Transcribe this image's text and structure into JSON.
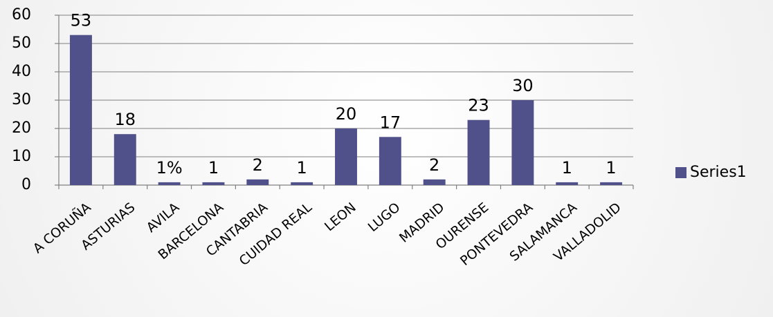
{
  "chart_data": {
    "type": "bar",
    "categories": [
      "A CORUÑA",
      "ASTURIAS",
      "AVILA",
      "BARCELONA",
      "CANTABRIA",
      "CUIDAD REAL",
      "LEON",
      "LUGO",
      "MADRID",
      "OURENSE",
      "PONTEVEDRA",
      "SALAMANCA",
      "VALLADOLID"
    ],
    "series": [
      {
        "name": "Series1",
        "color": "#50508a",
        "values": [
          53,
          18,
          1,
          1,
          2,
          1,
          20,
          17,
          2,
          23,
          30,
          1,
          1
        ],
        "value_labels": [
          "53",
          "18",
          "1%",
          "1",
          "2",
          "1",
          "20",
          "17",
          "2",
          "23",
          "30",
          "1",
          "1"
        ]
      }
    ],
    "ylim": [
      0,
      60
    ],
    "yticks": [
      0,
      10,
      20,
      30,
      40,
      50,
      60
    ],
    "grid": true,
    "legend": "right"
  }
}
